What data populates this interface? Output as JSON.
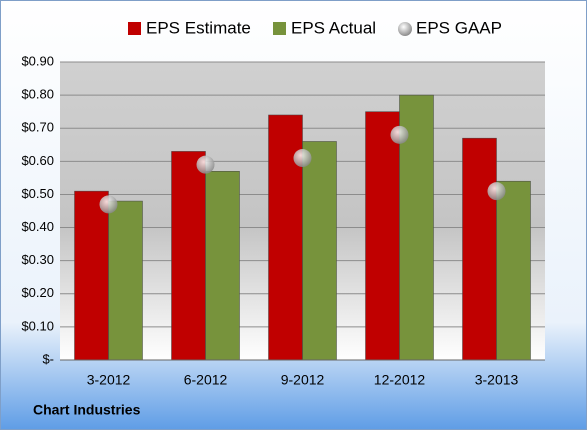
{
  "chart_data": {
    "type": "bar",
    "footer": "Chart Industries",
    "categories": [
      "3-2012",
      "6-2012",
      "9-2012",
      "12-2012",
      "3-2013"
    ],
    "series": [
      {
        "name": "EPS Estimate",
        "color": "#c00000",
        "type": "bar",
        "values": [
          0.51,
          0.63,
          0.74,
          0.75,
          0.67
        ]
      },
      {
        "name": "EPS Actual",
        "color": "#77933c",
        "type": "bar",
        "values": [
          0.48,
          0.57,
          0.66,
          0.8,
          0.54
        ]
      },
      {
        "name": "EPS GAAP",
        "color": "#a6a6a6",
        "type": "scatter",
        "values": [
          0.47,
          0.59,
          0.61,
          0.68,
          0.51
        ]
      }
    ],
    "ylim": [
      0,
      0.9
    ],
    "yticks": [
      {
        "value": 0,
        "label": "$-"
      },
      {
        "value": 0.1,
        "label": "$0.10"
      },
      {
        "value": 0.2,
        "label": "$0.20"
      },
      {
        "value": 0.3,
        "label": "$0.30"
      },
      {
        "value": 0.4,
        "label": "$0.40"
      },
      {
        "value": 0.5,
        "label": "$0.50"
      },
      {
        "value": 0.6,
        "label": "$0.60"
      },
      {
        "value": 0.7,
        "label": "$0.70"
      },
      {
        "value": 0.8,
        "label": "$0.80"
      },
      {
        "value": 0.9,
        "label": "$0.90"
      }
    ],
    "grid": true
  }
}
